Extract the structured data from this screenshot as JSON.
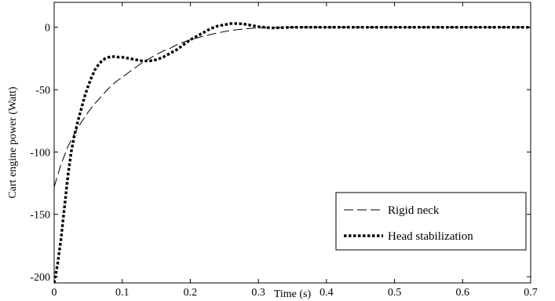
{
  "chart_data": {
    "type": "line",
    "xlabel": "Time (s)",
    "ylabel": "Cart engine power (Watt)",
    "xlim": [
      0,
      0.7
    ],
    "ylim": [
      -205,
      20
    ],
    "xticks": [
      0,
      0.1,
      0.2,
      0.3,
      0.4,
      0.5,
      0.6,
      0.7
    ],
    "xtick_labels": [
      "0",
      "0.1",
      "0.2",
      "0.3",
      "0.4",
      "0.5",
      "0.6",
      "0.7"
    ],
    "yticks": [
      0,
      -50,
      -100,
      -150,
      -200
    ],
    "ytick_labels": [
      "0",
      "-50",
      "-100",
      "-150",
      "-200"
    ],
    "grid": false,
    "legend_position": "bottom-right",
    "series": [
      {
        "name": "Rigid neck",
        "style": "dashed",
        "color": "#000000",
        "x": [
          0,
          0.01,
          0.02,
          0.03,
          0.04,
          0.05,
          0.06,
          0.07,
          0.08,
          0.09,
          0.1,
          0.11,
          0.12,
          0.13,
          0.14,
          0.15,
          0.16,
          0.17,
          0.18,
          0.19,
          0.2,
          0.22,
          0.24,
          0.26,
          0.28,
          0.3,
          0.35,
          0.4,
          0.5,
          0.6,
          0.7
        ],
        "y": [
          -128,
          -110,
          -96,
          -85,
          -76,
          -68,
          -61,
          -55,
          -49,
          -44,
          -40,
          -36,
          -32,
          -28,
          -25,
          -22,
          -19,
          -17,
          -14,
          -12,
          -10,
          -7,
          -4.5,
          -2.5,
          -1.2,
          -0.5,
          0,
          0,
          0,
          0,
          0
        ]
      },
      {
        "name": "Head stabilization",
        "style": "dotted",
        "color": "#000000",
        "x": [
          0,
          0.005,
          0.01,
          0.015,
          0.02,
          0.025,
          0.03,
          0.035,
          0.04,
          0.045,
          0.05,
          0.055,
          0.06,
          0.065,
          0.07,
          0.075,
          0.08,
          0.085,
          0.09,
          0.095,
          0.1,
          0.11,
          0.12,
          0.13,
          0.14,
          0.15,
          0.16,
          0.17,
          0.18,
          0.19,
          0.2,
          0.21,
          0.22,
          0.23,
          0.24,
          0.25,
          0.26,
          0.27,
          0.28,
          0.29,
          0.3,
          0.31,
          0.32,
          0.35,
          0.4,
          0.5,
          0.6,
          0.7
        ],
        "y": [
          -205,
          -190,
          -170,
          -145,
          -120,
          -100,
          -86,
          -75,
          -65,
          -55,
          -47,
          -40,
          -34,
          -30,
          -27,
          -25,
          -24,
          -23.5,
          -23.5,
          -24,
          -24,
          -25,
          -26,
          -27,
          -27,
          -26,
          -24,
          -21,
          -18,
          -14,
          -10,
          -7,
          -4,
          -1,
          1,
          2,
          3,
          3,
          2.5,
          1.5,
          0.5,
          0,
          -0.5,
          0,
          0,
          0,
          0,
          0
        ]
      }
    ]
  }
}
